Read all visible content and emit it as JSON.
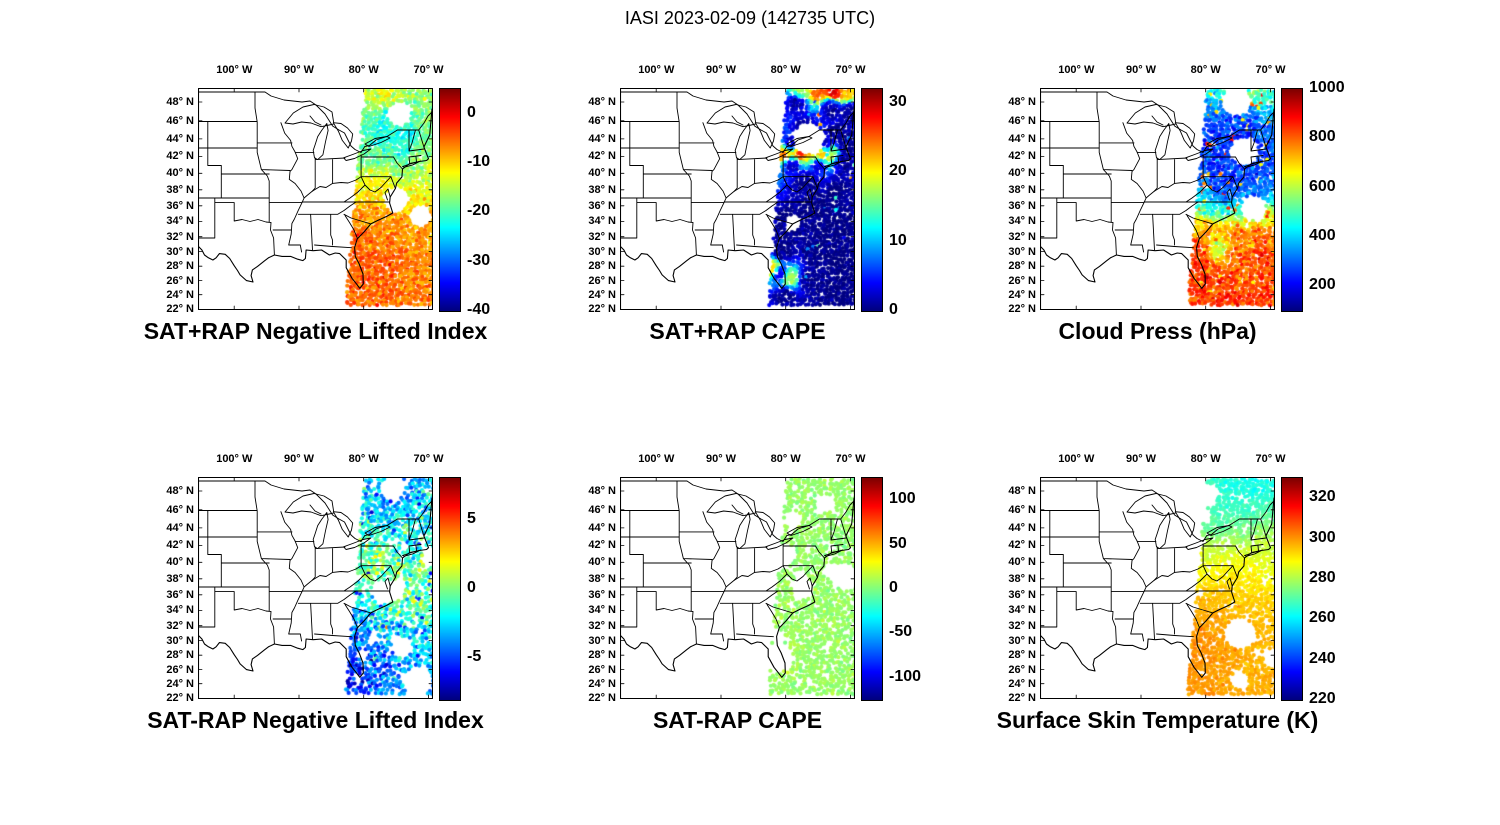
{
  "figure": {
    "title": "IASI 2023-02-09 (142735 UTC)"
  },
  "geo": {
    "lat_tick_values": [
      48,
      46,
      44,
      42,
      40,
      38,
      36,
      34,
      32,
      30,
      28,
      26,
      24,
      22
    ],
    "lat_tick_labels": [
      "48° N",
      "46° N",
      "44° N",
      "42° N",
      "40° N",
      "38° N",
      "36° N",
      "34° N",
      "32° N",
      "30° N",
      "28° N",
      "26° N",
      "24° N",
      "22° N"
    ],
    "lon_tick_values": [
      100,
      90,
      80,
      70
    ],
    "lon_tick_labels": [
      "100° W",
      "90° W",
      "80° W",
      "70° W"
    ],
    "lat_range": [
      21.8,
      49.45
    ],
    "lon_range": [
      -105.6,
      -69.3
    ]
  },
  "chart_data": [
    {
      "type": "scatter-map",
      "title": "SAT+RAP Negative Lifted Index",
      "colormap": "jet",
      "value_range": [
        -40,
        5
      ],
      "colorbar_ticks": [
        0,
        -10,
        -20,
        -30,
        -40
      ],
      "swath": {
        "seed": 11,
        "coverage": 0.97,
        "noise": 1.8,
        "radius": 26,
        "power": 3,
        "holes": 3,
        "points": [
          [
            -78,
            48.6,
            -14
          ],
          [
            -74.5,
            48.6,
            -20
          ],
          [
            -71,
            48.3,
            -16
          ],
          [
            -75.5,
            48.8,
            -6
          ],
          [
            -76.5,
            46.5,
            -23
          ],
          [
            -72.5,
            46.5,
            -20
          ],
          [
            -70,
            46,
            -18
          ],
          [
            -77,
            44.5,
            -22
          ],
          [
            -73.5,
            44,
            -25
          ],
          [
            -70.5,
            43.5,
            -18
          ],
          [
            -78,
            42,
            -20
          ],
          [
            -74.5,
            41.5,
            -22
          ],
          [
            -71,
            41.5,
            -15
          ],
          [
            -77.5,
            39.5,
            -13
          ],
          [
            -73.5,
            39.5,
            -17
          ],
          [
            -70.3,
            39.5,
            -14
          ],
          [
            -76.5,
            37.5,
            -9
          ],
          [
            -72.5,
            37,
            -11
          ],
          [
            -78.5,
            35,
            -7
          ],
          [
            -74.5,
            35,
            -8
          ],
          [
            -70.5,
            35,
            -9
          ],
          [
            -79.5,
            32.5,
            -5
          ],
          [
            -75.5,
            32.5,
            -6
          ],
          [
            -71.5,
            32.5,
            -7
          ],
          [
            -80.5,
            30,
            -4
          ],
          [
            -76.5,
            30,
            -5
          ],
          [
            -72,
            29.5,
            -6
          ],
          [
            -81,
            27.5,
            -5
          ],
          [
            -77,
            27,
            -4
          ],
          [
            -73,
            26.5,
            -6
          ],
          [
            -80.5,
            24.5,
            -5
          ],
          [
            -76,
            23.5,
            -5
          ],
          [
            -71.5,
            23.5,
            -6
          ]
        ]
      }
    },
    {
      "type": "scatter-map",
      "title": "SAT+RAP CAPE",
      "colormap": "jet",
      "value_range": [
        0,
        32
      ],
      "colorbar_ticks": [
        30,
        20,
        10,
        0
      ],
      "swath": {
        "seed": 22,
        "coverage": 0.985,
        "noise": 0.7,
        "radius": 11,
        "power": 4,
        "holes": 2,
        "sparkle": {
          "p": 0.012,
          "lo": 3,
          "hi": 26
        },
        "points": [
          [
            -75,
            48.95,
            25
          ],
          [
            -72.5,
            48.9,
            30
          ],
          [
            -70.5,
            48.95,
            22
          ],
          [
            -77.5,
            48.95,
            18
          ],
          [
            -78,
            48,
            0.4
          ],
          [
            -73,
            47.5,
            0.4
          ],
          [
            -70,
            47,
            0.4
          ],
          [
            -77,
            45,
            0.3
          ],
          [
            -72,
            44.5,
            0.3
          ],
          [
            -79,
            43.2,
            0.4
          ],
          [
            -74,
            43.2,
            0.4
          ],
          [
            -70.5,
            43.2,
            0.4
          ],
          [
            -80,
            42.2,
            26
          ],
          [
            -78,
            42.3,
            30
          ],
          [
            -76,
            42.1,
            22
          ],
          [
            -74.5,
            42.2,
            28
          ],
          [
            -73,
            42.3,
            18
          ],
          [
            -79,
            41.2,
            0.5
          ],
          [
            -75,
            41.2,
            0.5
          ],
          [
            -71,
            41.3,
            0.5
          ],
          [
            -77,
            39,
            0.3
          ],
          [
            -72,
            38,
            0.3
          ],
          [
            -76,
            36,
            0.3
          ],
          [
            -79,
            33.5,
            0.3
          ],
          [
            -74,
            33,
            0.3
          ],
          [
            -70.5,
            33,
            0.3
          ],
          [
            -80.5,
            30,
            0.4
          ],
          [
            -75.5,
            29.5,
            0.3
          ],
          [
            -71.5,
            29,
            0.3
          ],
          [
            -82,
            27.6,
            24
          ],
          [
            -81,
            27,
            0.4
          ],
          [
            -76.5,
            26,
            0.3
          ],
          [
            -72,
            25.5,
            0.3
          ],
          [
            -79.4,
            26.3,
            18
          ],
          [
            -80,
            23.8,
            0.4
          ],
          [
            -74.5,
            23,
            0.3
          ]
        ]
      }
    },
    {
      "type": "scatter-map",
      "title": "Cloud Press (hPa)",
      "colormap": "jet",
      "value_range": [
        100,
        1000
      ],
      "colorbar_ticks": [
        1000,
        800,
        600,
        400,
        200
      ],
      "swath": {
        "seed": 33,
        "coverage": 0.96,
        "noise": 40,
        "radius": 22,
        "power": 3,
        "holes": 3,
        "sparkle": {
          "p": 0.05,
          "lo": 650,
          "hi": 900
        },
        "points": [
          [
            -76,
            48.8,
            520
          ],
          [
            -72.5,
            48.7,
            560
          ],
          [
            -70,
            48.5,
            480
          ],
          [
            -77,
            46.5,
            300
          ],
          [
            -73.5,
            46.5,
            260
          ],
          [
            -70.5,
            46,
            320
          ],
          [
            -78,
            44.5,
            240
          ],
          [
            -74.5,
            44,
            220
          ],
          [
            -71,
            43.5,
            280
          ],
          [
            -78.5,
            42,
            260
          ],
          [
            -75,
            41.5,
            230
          ],
          [
            -71,
            41.5,
            250
          ],
          [
            -77.5,
            39.5,
            240
          ],
          [
            -73.5,
            39.5,
            260
          ],
          [
            -70.3,
            39.5,
            300
          ],
          [
            -76.5,
            37.5,
            250
          ],
          [
            -72.5,
            37,
            280
          ],
          [
            -78.5,
            35.5,
            420
          ],
          [
            -74.5,
            35,
            520
          ],
          [
            -70.5,
            35,
            600
          ],
          [
            -79.5,
            33,
            780
          ],
          [
            -75.5,
            32.5,
            840
          ],
          [
            -71.5,
            32.5,
            820
          ],
          [
            -80.5,
            30,
            860
          ],
          [
            -76.5,
            30,
            880
          ],
          [
            -72,
            29.5,
            850
          ],
          [
            -77.7,
            30.4,
            420
          ],
          [
            -81,
            27.5,
            870
          ],
          [
            -77,
            27,
            850
          ],
          [
            -73,
            26.5,
            830
          ],
          [
            -80.5,
            24.5,
            860
          ],
          [
            -76,
            23.5,
            850
          ],
          [
            -71.5,
            23.5,
            840
          ]
        ]
      }
    },
    {
      "type": "scatter-map",
      "title": "SAT-RAP Negative Lifted Index",
      "colormap": "jet",
      "value_range": [
        -8,
        8
      ],
      "colorbar_ticks": [
        5,
        0,
        -5
      ],
      "swath": {
        "seed": 44,
        "coverage": 0.72,
        "noise": 1.3,
        "radius": 24,
        "power": 3,
        "holes": 9,
        "sparkle": {
          "p": 0.02,
          "lo": -7,
          "hi": -5
        },
        "points": [
          [
            -76,
            48.5,
            -3
          ],
          [
            -72,
            48.5,
            -4
          ],
          [
            -70,
            48,
            -2
          ],
          [
            -77,
            46,
            -3.5
          ],
          [
            -73,
            45.5,
            -2.5
          ],
          [
            -70.5,
            45,
            -3
          ],
          [
            -78,
            43.5,
            -1
          ],
          [
            -74,
            43,
            -3
          ],
          [
            -70.5,
            42.5,
            -2
          ],
          [
            -78,
            41,
            -0.5
          ],
          [
            -74.5,
            41,
            -1
          ],
          [
            -70.8,
            41,
            -2
          ],
          [
            -77.5,
            39.5,
            0
          ],
          [
            -73.5,
            39.5,
            -0.5
          ],
          [
            -70.3,
            39.5,
            0.3
          ],
          [
            -76.5,
            37.5,
            -0.5
          ],
          [
            -72.5,
            37,
            0
          ],
          [
            -78.5,
            35,
            -1.5
          ],
          [
            -74.5,
            35,
            -1
          ],
          [
            -70.5,
            35,
            -0.5
          ],
          [
            -79.5,
            32.5,
            -3
          ],
          [
            -75.5,
            32.5,
            -2
          ],
          [
            -71.5,
            32.5,
            -1.5
          ],
          [
            -80.5,
            30,
            -4.5
          ],
          [
            -76.5,
            30,
            -3.5
          ],
          [
            -72,
            29.5,
            -2.5
          ],
          [
            -81,
            27.5,
            -5
          ],
          [
            -77,
            27,
            -4
          ],
          [
            -73,
            26.5,
            -3
          ],
          [
            -80.5,
            24.5,
            -5.5
          ],
          [
            -76,
            23.5,
            -4
          ],
          [
            -71.5,
            23.5,
            -3.5
          ]
        ]
      }
    },
    {
      "type": "scatter-map",
      "title": "SAT-RAP CAPE",
      "colormap": "jet",
      "value_range": [
        -125,
        125
      ],
      "colorbar_ticks": [
        100,
        50,
        0,
        -50,
        -100
      ],
      "swath": {
        "seed": 55,
        "coverage": 0.72,
        "noise": 4,
        "radius": 26,
        "power": 3,
        "holes": 9,
        "points": [
          [
            -75,
            48,
            5
          ],
          [
            -71,
            47,
            5
          ],
          [
            -77,
            45,
            6
          ],
          [
            -72.5,
            44,
            5
          ],
          [
            -78,
            42,
            6
          ],
          [
            -74,
            41,
            5
          ],
          [
            -70.5,
            41,
            5
          ],
          [
            -77,
            39,
            5
          ],
          [
            -72.5,
            38,
            6
          ],
          [
            -78.5,
            35.5,
            7
          ],
          [
            -74,
            35,
            5
          ],
          [
            -70.5,
            35,
            6
          ],
          [
            -80,
            32.5,
            8
          ],
          [
            -76,
            32,
            6
          ],
          [
            -72,
            31.5,
            5
          ],
          [
            -80.9,
            29,
            8
          ],
          [
            -76.5,
            28.5,
            6
          ],
          [
            -72.5,
            27.5,
            5
          ],
          [
            -80,
            25,
            7
          ],
          [
            -75,
            23.5,
            6
          ]
        ]
      }
    },
    {
      "type": "scatter-map",
      "title": "Surface Skin Temperature (K)",
      "colormap": "jet",
      "value_range": [
        220,
        330
      ],
      "colorbar_ticks": [
        320,
        300,
        280,
        260,
        240,
        220
      ],
      "swath": {
        "seed": 66,
        "coverage": 0.85,
        "noise": 1.5,
        "radius": 26,
        "power": 3,
        "holes": 6,
        "points": [
          [
            -75.5,
            48.8,
            263
          ],
          [
            -72,
            48.6,
            262
          ],
          [
            -70,
            48.4,
            265
          ],
          [
            -77,
            46.5,
            266
          ],
          [
            -73,
            46,
            265
          ],
          [
            -70.5,
            45.5,
            270
          ],
          [
            -78,
            44,
            270
          ],
          [
            -74,
            43.5,
            272
          ],
          [
            -70.3,
            43.5,
            280
          ],
          [
            -78,
            41.5,
            283
          ],
          [
            -74.5,
            41.5,
            285
          ],
          [
            -70.8,
            41.5,
            283
          ],
          [
            -77.5,
            39.5,
            288
          ],
          [
            -73.5,
            39.5,
            290
          ],
          [
            -70.3,
            39.5,
            287
          ],
          [
            -76.5,
            37.5,
            293
          ],
          [
            -72.5,
            37,
            292
          ],
          [
            -78.5,
            35,
            297
          ],
          [
            -74.5,
            35,
            296
          ],
          [
            -70.5,
            35,
            294
          ],
          [
            -79.5,
            32.5,
            299
          ],
          [
            -75.5,
            32.5,
            298
          ],
          [
            -71.5,
            32.5,
            296
          ],
          [
            -80.5,
            30,
            300
          ],
          [
            -76.5,
            30,
            299
          ],
          [
            -72,
            29.5,
            297
          ],
          [
            -81,
            27.5,
            301
          ],
          [
            -77,
            27,
            299
          ],
          [
            -73,
            26.5,
            297
          ],
          [
            -80.5,
            24.5,
            300
          ],
          [
            -76,
            23.5,
            298
          ],
          [
            -71.5,
            23.5,
            297
          ]
        ]
      }
    }
  ]
}
